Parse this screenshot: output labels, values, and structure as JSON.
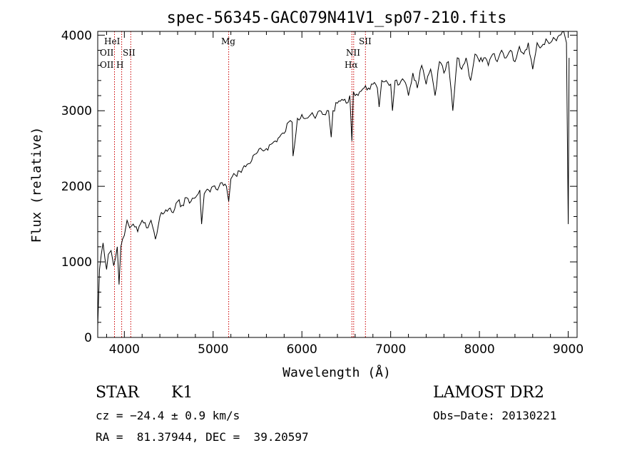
{
  "chart_data": {
    "type": "line",
    "title": "spec-56345-GAC079N41V1_sp07-210.fits",
    "xlabel": "Wavelength (Å)",
    "ylabel": "Flux (relative)",
    "xlim": [
      3700,
      9100
    ],
    "ylim": [
      0,
      4050
    ],
    "x_ticks": [
      "4000",
      "5000",
      "6000",
      "7000",
      "8000",
      "9000"
    ],
    "y_ticks": [
      "0",
      "1000",
      "2000",
      "3000",
      "4000"
    ],
    "line_color": "#000000",
    "marker_color": "#cc0000",
    "spectral_lines": [
      {
        "name": "OII",
        "x": 3727,
        "row": 3
      },
      {
        "name": "HeI",
        "x": 3889,
        "row": 1
      },
      {
        "name": "OII",
        "x": 3970,
        "row": 5
      },
      {
        "name": "H",
        "x": 3970,
        "row": 6
      },
      {
        "name": "SII",
        "x": 4072,
        "row": 4
      },
      {
        "name": "Mg",
        "x": 5175,
        "row": 2
      },
      {
        "name": "NII",
        "x": 6583,
        "row": 3
      },
      {
        "name": "Hα",
        "x": 6563,
        "row": 5
      },
      {
        "name": "SII",
        "x": 6716,
        "row": 2
      }
    ],
    "spectral_lines_x": [
      3889,
      3970,
      4072,
      5175,
      6563,
      6583,
      6716
    ],
    "spectrum": {
      "x": [
        3700,
        3720,
        3740,
        3760,
        3780,
        3800,
        3820,
        3850,
        3880,
        3900,
        3920,
        3940,
        3960,
        3980,
        4000,
        4030,
        4060,
        4100,
        4150,
        4200,
        4250,
        4300,
        4350,
        4400,
        4450,
        4500,
        4550,
        4600,
        4650,
        4700,
        4750,
        4800,
        4850,
        4870,
        4900,
        4950,
        5000,
        5050,
        5100,
        5150,
        5175,
        5200,
        5250,
        5300,
        5400,
        5500,
        5600,
        5700,
        5800,
        5850,
        5890,
        5900,
        5950,
        6000,
        6050,
        6100,
        6150,
        6200,
        6250,
        6300,
        6330,
        6350,
        6400,
        6450,
        6500,
        6540,
        6563,
        6580,
        6600,
        6650,
        6700,
        6750,
        6800,
        6850,
        6870,
        6900,
        6950,
        7000,
        7020,
        7050,
        7100,
        7150,
        7200,
        7250,
        7300,
        7350,
        7400,
        7450,
        7500,
        7550,
        7600,
        7650,
        7700,
        7750,
        7800,
        7850,
        7900,
        7950,
        8000,
        8050,
        8100,
        8150,
        8200,
        8250,
        8300,
        8350,
        8400,
        8450,
        8500,
        8550,
        8600,
        8650,
        8700,
        8750,
        8800,
        8850,
        8900,
        8950,
        8980,
        9000,
        9010
      ],
      "y": [
        150,
        900,
        1100,
        1250,
        1050,
        900,
        1100,
        1150,
        950,
        1050,
        1200,
        700,
        1200,
        1300,
        1350,
        1550,
        1450,
        1500,
        1400,
        1550,
        1450,
        1550,
        1300,
        1600,
        1650,
        1700,
        1650,
        1800,
        1750,
        1850,
        1800,
        1850,
        1950,
        1500,
        1900,
        1950,
        2000,
        1950,
        2050,
        2000,
        1800,
        2100,
        2150,
        2200,
        2300,
        2450,
        2500,
        2600,
        2700,
        2850,
        2850,
        2400,
        2900,
        2950,
        2900,
        2950,
        2900,
        3000,
        2950,
        3000,
        2650,
        3000,
        3100,
        3150,
        3100,
        3200,
        2600,
        3250,
        3200,
        3250,
        3300,
        3300,
        3350,
        3300,
        3050,
        3400,
        3400,
        3350,
        3000,
        3400,
        3350,
        3400,
        3200,
        3500,
        3300,
        3600,
        3350,
        3550,
        3200,
        3650,
        3500,
        3650,
        3000,
        3700,
        3550,
        3700,
        3400,
        3750,
        3650,
        3700,
        3600,
        3750,
        3650,
        3800,
        3700,
        3800,
        3650,
        3850,
        3750,
        3900,
        3550,
        3900,
        3850,
        3950,
        3900,
        3950,
        4000,
        4050,
        3900,
        1500,
        3700
      ]
    }
  },
  "info": {
    "object_type": "STAR",
    "subclass": "K1",
    "survey": "LAMOST DR2",
    "cz": "cz = −24.4 ± 0.9 km/s",
    "obs_date": "Obs−Date: 20130221",
    "coords": "RA =  81.37944, DEC =  39.20597"
  }
}
